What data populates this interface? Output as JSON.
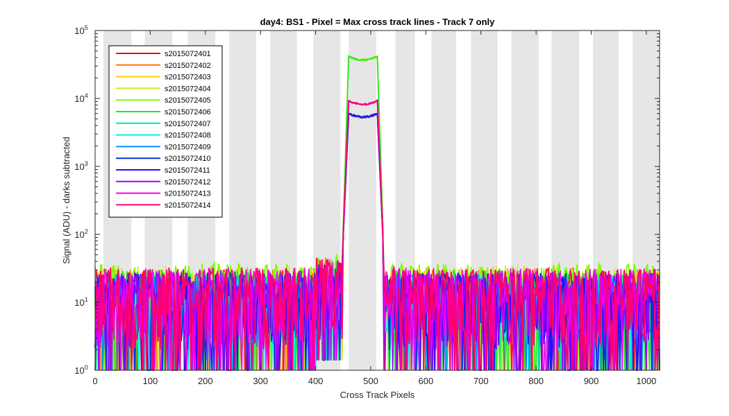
{
  "chart_data": {
    "type": "line",
    "title": "day4: BS1 - Pixel = Max cross track lines - Track 7 only",
    "xlabel": "Cross Track Pixels",
    "ylabel": "Signal (ADU) - darks subtracted",
    "xlim": [
      0,
      1024
    ],
    "ylim": [
      1,
      100000
    ],
    "yscale": "log",
    "grid": false,
    "legend_position": "top-left",
    "x_ticks": [
      0,
      100,
      200,
      300,
      400,
      500,
      600,
      700,
      800,
      900,
      1000
    ],
    "y_ticks": [
      {
        "value": 1,
        "base": "10",
        "exp": "0"
      },
      {
        "value": 10,
        "base": "10",
        "exp": "1"
      },
      {
        "value": 100,
        "base": "10",
        "exp": "2"
      },
      {
        "value": 1000,
        "base": "10",
        "exp": "3"
      },
      {
        "value": 10000,
        "base": "10",
        "exp": "4"
      },
      {
        "value": 100000,
        "base": "10",
        "exp": "5"
      }
    ],
    "background_bands": [
      [
        15,
        66
      ],
      [
        90,
        140
      ],
      [
        168,
        218
      ],
      [
        243,
        292
      ],
      [
        318,
        366
      ],
      [
        396,
        445
      ],
      [
        460,
        510
      ],
      [
        545,
        580
      ],
      [
        610,
        655
      ],
      [
        682,
        730
      ],
      [
        755,
        805
      ],
      [
        828,
        878
      ],
      [
        903,
        950
      ],
      [
        975,
        1024
      ]
    ],
    "band_color": "#e6e6e6",
    "peak_region": [
      452,
      520
    ],
    "series": [
      {
        "name": "s2015072401",
        "color": "#ff0000",
        "noise_level": 12,
        "peak_level": 6500
      },
      {
        "name": "s2015072402",
        "color": "#ff7300",
        "noise_level": 13,
        "peak_level": 6400
      },
      {
        "name": "s2015072403",
        "color": "#ffd000",
        "noise_level": 12,
        "peak_level": 45000
      },
      {
        "name": "s2015072404",
        "color": "#c8f020",
        "noise_level": 14,
        "peak_level": 45000
      },
      {
        "name": "s2015072405",
        "color": "#7cff00",
        "noise_level": 15,
        "peak_level": 45000
      },
      {
        "name": "s2015072406",
        "color": "#1de82a",
        "noise_level": 12,
        "peak_level": 45000
      },
      {
        "name": "s2015072407",
        "color": "#00e8a0",
        "noise_level": 11,
        "peak_level": 6500
      },
      {
        "name": "s2015072408",
        "color": "#00f0f0",
        "noise_level": 10,
        "peak_level": 6500
      },
      {
        "name": "s2015072409",
        "color": "#0090ff",
        "noise_level": 10,
        "peak_level": 6500
      },
      {
        "name": "s2015072410",
        "color": "#0033e0",
        "noise_level": 11,
        "peak_level": 6500
      },
      {
        "name": "s2015072411",
        "color": "#4000ff",
        "noise_level": 11,
        "peak_level": 6500
      },
      {
        "name": "s2015072412",
        "color": "#a000ff",
        "noise_level": 12,
        "peak_level": 10000
      },
      {
        "name": "s2015072413",
        "color": "#f000f0",
        "noise_level": 13,
        "peak_level": 10000
      },
      {
        "name": "s2015072414",
        "color": "#ff0070",
        "noise_level": 13,
        "peak_level": 10000
      }
    ]
  }
}
